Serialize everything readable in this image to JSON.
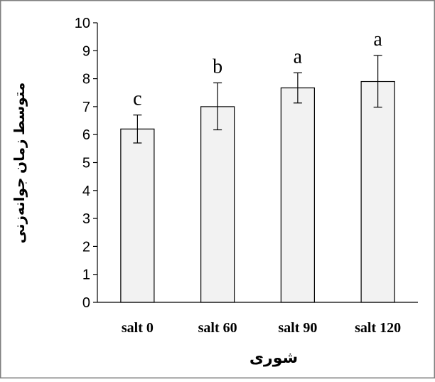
{
  "chart_data": {
    "type": "bar",
    "title": "",
    "xlabel": "شوری",
    "ylabel": "متوسط زمان جوانه‌زنی",
    "categories": [
      "salt 0",
      "salt 60",
      "salt 90",
      "salt 120"
    ],
    "values": [
      6.2,
      7.0,
      7.67,
      7.9
    ],
    "error_bars": [
      {
        "lower": 5.7,
        "upper": 6.7
      },
      {
        "lower": 6.17,
        "upper": 7.85
      },
      {
        "lower": 7.13,
        "upper": 8.21
      },
      {
        "lower": 6.98,
        "upper": 8.83
      }
    ],
    "significance_letters": [
      "c",
      "b",
      "a",
      "a"
    ],
    "ylim": [
      0,
      10
    ],
    "yticks": [
      "0",
      "1",
      "2",
      "3",
      "4",
      "5",
      "6",
      "7",
      "8",
      "9",
      "10"
    ],
    "grid": false,
    "legend": "none",
    "colors": {
      "bar_fill": "#f2f2f2",
      "bar_stroke": "#000000",
      "frame": "#7f7f7f",
      "axis": "#000000"
    }
  }
}
